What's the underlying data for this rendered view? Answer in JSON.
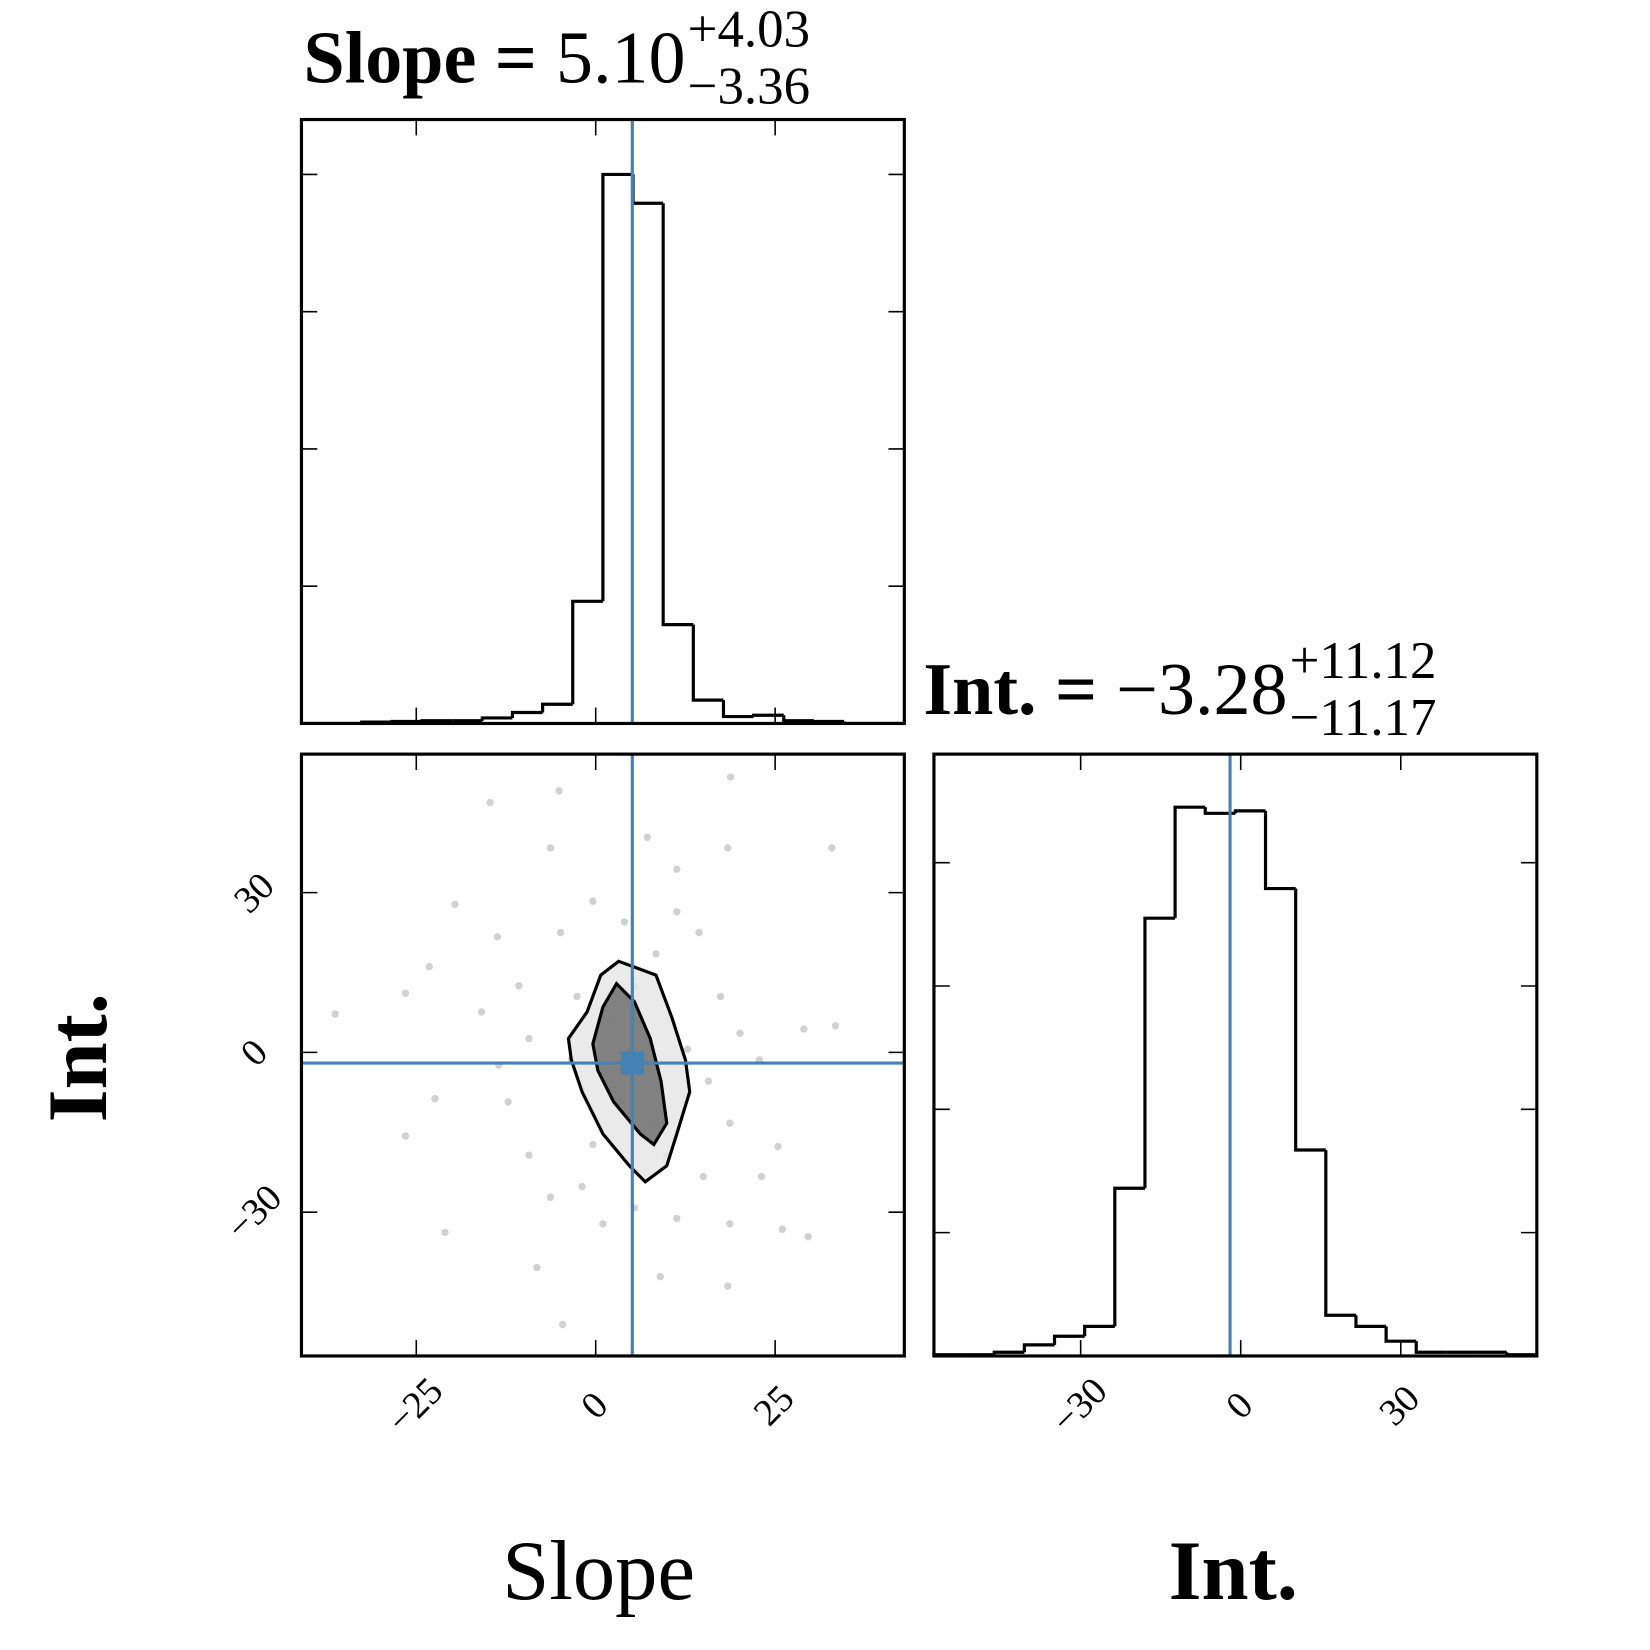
{
  "chart_data": [
    {
      "type": "histogram",
      "title": "Slope =",
      "title_value": "5.10",
      "title_upper": "+4.03",
      "title_lower": "−3.36",
      "bins": [
        -41,
        -36.8,
        -32.6,
        -28.4,
        -24.2,
        -20,
        -15.8,
        -11.6,
        -7.4,
        -3.2,
        1,
        5.2,
        9.4,
        13.6,
        17.8,
        22,
        26.2,
        30.4,
        34.6,
        38.8,
        43
      ],
      "counts": [
        0,
        0,
        0.01,
        0.015,
        0.02,
        0.02,
        0.04,
        0.08,
        0.14,
        0.89,
        4.0,
        3.79,
        0.72,
        0.17,
        0.05,
        0.06,
        0.02,
        0.015,
        0,
        0
      ],
      "xlim": [
        -41,
        43
      ],
      "ylim": [
        0,
        4.4
      ],
      "yticks": [
        1,
        2,
        3,
        4
      ],
      "truth": 5.1,
      "truth_color": "#4682b4",
      "color": "#000000"
    },
    {
      "type": "scatter",
      "xlabel": "Slope",
      "ylabel": "Int.",
      "xlim": [
        -41,
        43
      ],
      "ylim": [
        -57,
        56
      ],
      "xticks": [
        {
          "value": -25,
          "label": "−25"
        },
        0,
        25
      ],
      "yticks": [
        {
          "value": -30,
          "label": "−30"
        },
        0,
        30
      ],
      "x": [
        -14.7,
        18.8,
        -5.1,
        32.9,
        -6.3,
        18.4,
        -19.6,
        -13.7,
        11.3,
        -23.2,
        -26.5,
        -36.3,
        -22.4,
        -26.5,
        -13.5,
        -12.2,
        -9.3,
        -6.3,
        -8.2,
        -4.6,
        -21.0,
        22.8,
        20.1,
        29.0,
        33.4,
        25.4,
        26.0,
        29.6,
        18.4,
        9.0,
        1.0,
        -1.9,
        15.0,
        18.7,
        17.4,
        14.4,
        7.2,
        11.3,
        -10.7,
        -4.9,
        -0.4,
        4.0,
        8.4,
        -9.3,
        15.7,
        5.4,
        11.3,
        23.1,
        -15.9,
        18.7,
        2.5,
        -3.4,
        8.4,
        -0.4,
        5.4,
        12.8,
        -2.6,
        9.9
      ],
      "y": [
        46.9,
        51.7,
        49.1,
        38.4,
        38.4,
        38.4,
        27.8,
        21.7,
        34.4,
        16.1,
        11.1,
        7.2,
        -8.7,
        -15.7,
        -2.4,
        -9.3,
        -19.3,
        -27.2,
        -40.4,
        -51.1,
        -33.8,
        -1.4,
        3.6,
        4.4,
        5.0,
        -17.7,
        -33.2,
        -34.6,
        -43.9,
        -42.1,
        -32.2,
        -25.2,
        -23.3,
        -13.3,
        10.5,
        22.5,
        40.4,
        26.4,
        12.5,
        22.5,
        28.4,
        24.5,
        18.5,
        2.6,
        -5.4,
        -29.2,
        -31.2,
        -23.3,
        7.6,
        -32.2,
        6.6,
        -1.4,
        -13.3,
        -17.3,
        12.5,
        0.6,
        10.5,
        -19.3
      ],
      "point_color": "#000000",
      "contours": [
        {
          "x": [
            3.2,
            8.4,
            10.6,
            12.5,
            13.1,
            11.3,
            9.9,
            6.9,
            4.7,
            1.0,
            -1.9,
            -3.4,
            -3.8,
            -1.2,
            0.7
          ],
          "y": [
            17.1,
            14.5,
            6.6,
            -1.4,
            -7.4,
            -15.3,
            -21.3,
            -24.3,
            -21.3,
            -15.3,
            -7.4,
            -1.4,
            2.6,
            7.6,
            14.5
          ]
        },
        {
          "x": [
            2.9,
            5.4,
            7.6,
            9.1,
            9.9,
            8.1,
            6.2,
            2.5,
            0.3,
            -0.4,
            1.0
          ],
          "y": [
            12.9,
            9.5,
            2.6,
            -5.4,
            -13.3,
            -17.3,
            -15.3,
            -9.3,
            -3.4,
            1.6,
            8.5
          ]
        }
      ],
      "truth_x": 5.1,
      "truth_y": -2,
      "truth_color": "#4682b4"
    },
    {
      "type": "histogram",
      "title": "Int. =",
      "title_value": "−3.28",
      "title_upper": "+11.12",
      "title_lower": "−11.17",
      "xlabel": "Int.",
      "bins": [
        -57.5,
        -51.85,
        -46.2,
        -40.55,
        -34.9,
        -29.25,
        -23.6,
        -17.95,
        -12.3,
        -6.65,
        -1,
        4.65,
        10.3,
        15.95,
        21.6,
        27.25,
        32.9,
        38.55,
        44.2,
        49.85,
        55.5
      ],
      "counts": [
        0.01,
        0.01,
        0.03,
        0.09,
        0.16,
        0.24,
        1.36,
        3.55,
        4.45,
        4.4,
        4.42,
        3.79,
        1.67,
        0.33,
        0.24,
        0.12,
        0.03,
        0.03,
        0.03,
        0.01
      ],
      "xlim": [
        -57.5,
        55.5
      ],
      "xticks": [
        {
          "value": -30,
          "label": "−30"
        },
        0,
        30
      ],
      "ylim": [
        0,
        4.88
      ],
      "yticks": [
        1,
        2,
        3,
        4
      ],
      "truth": -2,
      "truth_color": "#4682b4",
      "color": "#000000"
    }
  ]
}
